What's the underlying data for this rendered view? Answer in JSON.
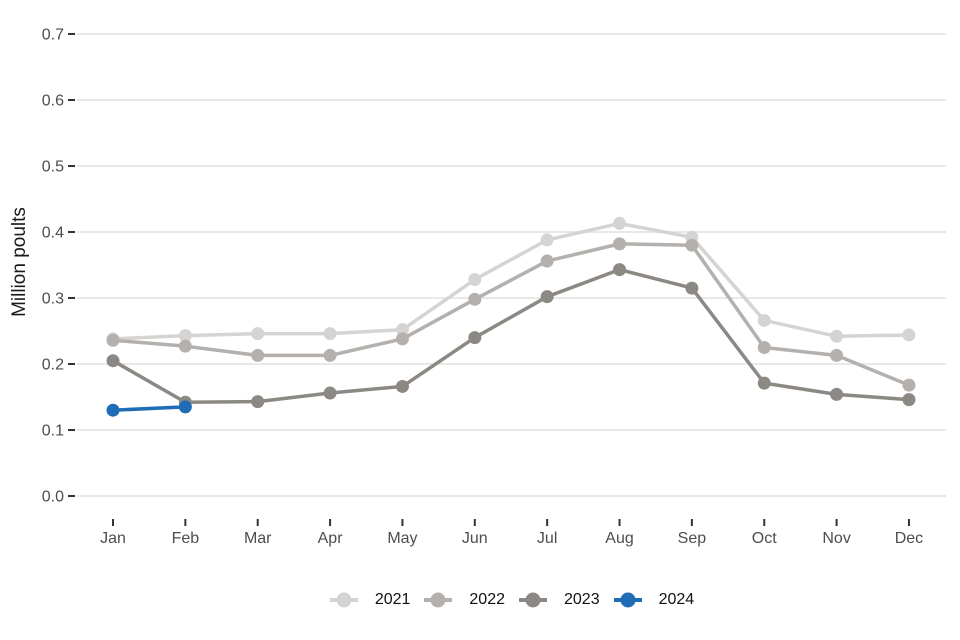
{
  "chart_data": {
    "type": "line",
    "title": "",
    "xlabel": "",
    "ylabel": "Million poults",
    "categories": [
      "Jan",
      "Feb",
      "Mar",
      "Apr",
      "May",
      "Jun",
      "Jul",
      "Aug",
      "Sep",
      "Oct",
      "Nov",
      "Dec"
    ],
    "ylim": [
      0.0,
      0.7
    ],
    "yticks": [
      0.0,
      0.1,
      0.2,
      0.3,
      0.4,
      0.5,
      0.6,
      0.7
    ],
    "ytick_labels": [
      "0.0",
      "0.1",
      "0.2",
      "0.3",
      "0.4",
      "0.5",
      "0.6",
      "0.7"
    ],
    "grid": "horizontal light-gray gridlines on white, axis ticks only (no axis lines)",
    "legend_position": "bottom-center",
    "series": [
      {
        "name": "2021",
        "color": "#d6d4d2",
        "values": [
          0.238,
          0.243,
          0.246,
          0.246,
          0.252,
          0.328,
          0.388,
          0.413,
          0.392,
          0.266,
          0.242,
          0.244
        ]
      },
      {
        "name": "2022",
        "color": "#b3b0ad",
        "values": [
          0.236,
          0.227,
          0.213,
          0.213,
          0.238,
          0.298,
          0.356,
          0.382,
          0.38,
          0.225,
          0.213,
          0.168
        ]
      },
      {
        "name": "2023",
        "color": "#8c8884",
        "values": [
          0.205,
          0.142,
          0.143,
          0.156,
          0.166,
          0.24,
          0.302,
          0.343,
          0.315,
          0.171,
          0.154,
          0.146
        ]
      },
      {
        "name": "2024",
        "color": "#1f6db6",
        "values": [
          0.13,
          0.135,
          null,
          null,
          null,
          null,
          null,
          null,
          null,
          null,
          null,
          null
        ]
      }
    ],
    "style": {
      "background": "#ffffff",
      "grid_color": "#e8e8e8",
      "tick_color": "#333333",
      "axis_text_color": "#4d4d4d",
      "title_color": "#1a1a1a"
    }
  }
}
